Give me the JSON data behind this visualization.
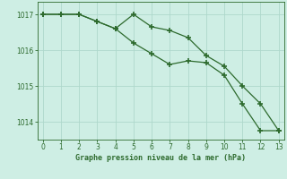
{
  "series1": [
    1017.0,
    1017.0,
    1017.0,
    1016.8,
    1016.6,
    1017.0,
    1016.65,
    1016.55,
    1016.35,
    1015.85,
    1015.55,
    1015.0,
    1014.5,
    1013.75
  ],
  "series2": [
    1017.0,
    1017.0,
    1017.0,
    1016.8,
    1016.6,
    1016.2,
    1015.9,
    1015.6,
    1015.7,
    1015.65,
    1015.3,
    1014.5,
    1013.75,
    1013.75
  ],
  "x": [
    0,
    1,
    2,
    3,
    4,
    5,
    6,
    7,
    8,
    9,
    10,
    11,
    12,
    13
  ],
  "line_color": "#2d6a2d",
  "bg_color": "#ceeee4",
  "grid_color": "#aed8cc",
  "xlabel": "Graphe pression niveau de la mer (hPa)",
  "ylim": [
    1013.5,
    1017.35
  ],
  "yticks": [
    1014,
    1015,
    1016,
    1017
  ],
  "xticks": [
    0,
    1,
    2,
    3,
    4,
    5,
    6,
    7,
    8,
    9,
    10,
    11,
    12,
    13
  ]
}
